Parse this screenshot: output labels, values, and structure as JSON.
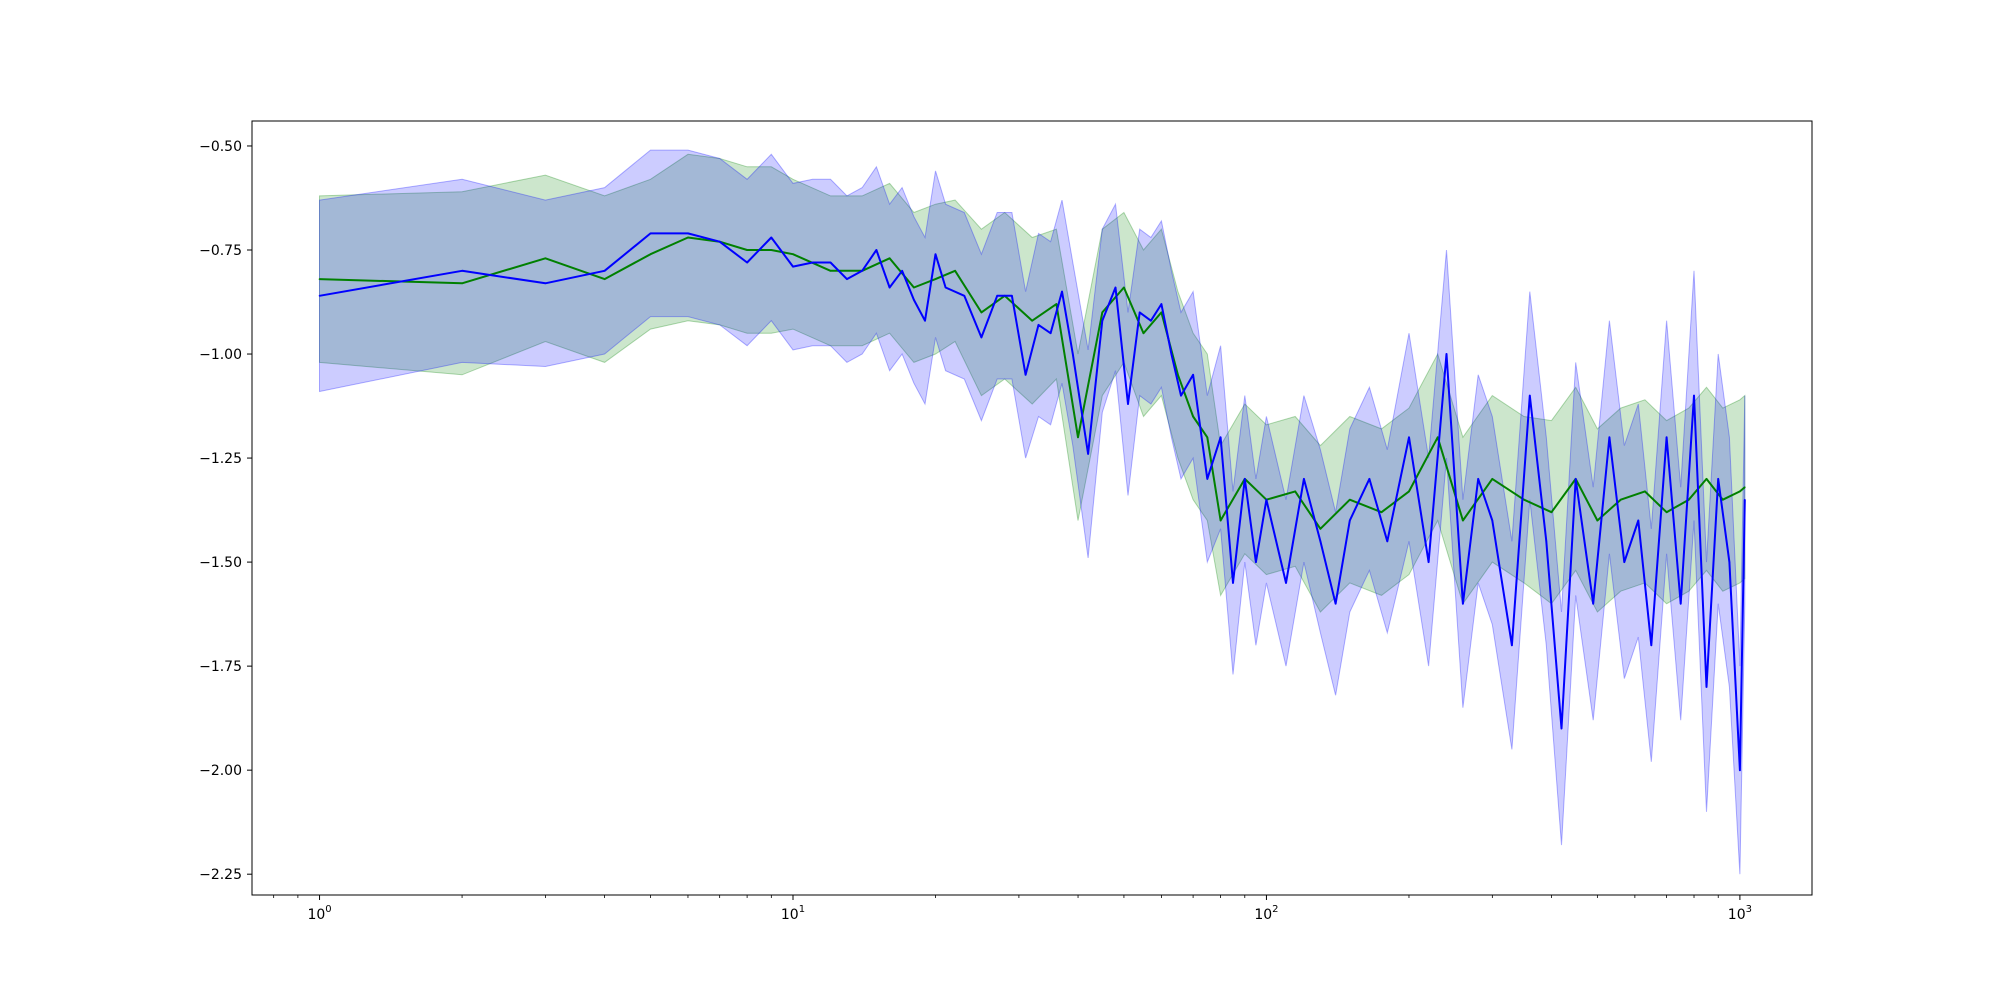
{
  "chart_data": {
    "type": "line",
    "title": "",
    "xlabel": "",
    "ylabel": "",
    "xscale": "log",
    "xlim": [
      0.72,
      1420
    ],
    "ylim": [
      -2.3,
      -0.44
    ],
    "grid": false,
    "legend": "none",
    "x_ticks": [
      1,
      10,
      100,
      1000
    ],
    "x_tick_labels": [
      {
        "base": "10",
        "exp": "0"
      },
      {
        "base": "10",
        "exp": "1"
      },
      {
        "base": "10",
        "exp": "2"
      },
      {
        "base": "10",
        "exp": "3"
      }
    ],
    "y_ticks": [
      -0.5,
      -0.75,
      -1.0,
      -1.25,
      -1.5,
      -1.75,
      -2.0,
      -2.25
    ],
    "y_tick_labels": [
      "−0.50",
      "−0.75",
      "−1.00",
      "−1.25",
      "−1.50",
      "−1.75",
      "−2.00",
      "−2.25"
    ],
    "series": [
      {
        "color": "#008000",
        "band_color": "#008000",
        "band_opacity": 0.2,
        "x": [
          1,
          2,
          3,
          4,
          5,
          6,
          7,
          8,
          9,
          10,
          12,
          14,
          16,
          18,
          20,
          22,
          25,
          28,
          32,
          36,
          40,
          45,
          50,
          55,
          60,
          65,
          70,
          75,
          80,
          90,
          100,
          115,
          130,
          150,
          175,
          200,
          230,
          260,
          300,
          350,
          400,
          450,
          500,
          560,
          630,
          700,
          780,
          850,
          920,
          1000,
          1024
        ],
        "y": [
          -0.82,
          -0.83,
          -0.77,
          -0.82,
          -0.76,
          -0.72,
          -0.73,
          -0.75,
          -0.75,
          -0.76,
          -0.8,
          -0.8,
          -0.77,
          -0.84,
          -0.82,
          -0.8,
          -0.9,
          -0.86,
          -0.92,
          -0.88,
          -1.2,
          -0.9,
          -0.84,
          -0.95,
          -0.9,
          -1.05,
          -1.15,
          -1.2,
          -1.4,
          -1.3,
          -1.35,
          -1.33,
          -1.42,
          -1.35,
          -1.38,
          -1.33,
          -1.2,
          -1.4,
          -1.3,
          -1.35,
          -1.38,
          -1.3,
          -1.4,
          -1.35,
          -1.33,
          -1.38,
          -1.35,
          -1.3,
          -1.35,
          -1.33,
          -1.32
        ],
        "spread": [
          0.2,
          0.22,
          0.2,
          0.2,
          0.18,
          0.2,
          0.2,
          0.2,
          0.2,
          0.18,
          0.18,
          0.18,
          0.18,
          0.18,
          0.18,
          0.17,
          0.2,
          0.2,
          0.2,
          0.18,
          0.2,
          0.2,
          0.18,
          0.2,
          0.2,
          0.2,
          0.2,
          0.2,
          0.18,
          0.18,
          0.18,
          0.18,
          0.2,
          0.2,
          0.2,
          0.2,
          0.2,
          0.2,
          0.2,
          0.2,
          0.22,
          0.22,
          0.22,
          0.22,
          0.22,
          0.22,
          0.22,
          0.22,
          0.22,
          0.22,
          0.22
        ]
      },
      {
        "color": "#0000ff",
        "band_color": "#0000ff",
        "band_opacity": 0.2,
        "x": [
          1,
          2,
          3,
          4,
          5,
          6,
          7,
          8,
          9,
          10,
          11,
          12,
          13,
          14,
          15,
          16,
          17,
          18,
          19,
          20,
          21,
          23,
          25,
          27,
          29,
          31,
          33,
          35,
          37,
          39,
          42,
          45,
          48,
          51,
          54,
          57,
          60,
          63,
          66,
          70,
          75,
          80,
          85,
          90,
          95,
          100,
          110,
          120,
          130,
          140,
          150,
          165,
          180,
          200,
          220,
          240,
          260,
          280,
          300,
          330,
          360,
          390,
          420,
          450,
          490,
          530,
          570,
          610,
          650,
          700,
          750,
          800,
          850,
          900,
          950,
          1000,
          1024
        ],
        "y": [
          -0.86,
          -0.8,
          -0.83,
          -0.8,
          -0.71,
          -0.71,
          -0.73,
          -0.78,
          -0.72,
          -0.79,
          -0.78,
          -0.78,
          -0.82,
          -0.8,
          -0.75,
          -0.84,
          -0.8,
          -0.87,
          -0.92,
          -0.76,
          -0.84,
          -0.86,
          -0.96,
          -0.86,
          -0.86,
          -1.05,
          -0.93,
          -0.95,
          -0.85,
          -1.0,
          -1.24,
          -0.92,
          -0.84,
          -1.12,
          -0.9,
          -0.92,
          -0.88,
          -1.0,
          -1.1,
          -1.05,
          -1.3,
          -1.2,
          -1.55,
          -1.3,
          -1.5,
          -1.35,
          -1.55,
          -1.3,
          -1.45,
          -1.6,
          -1.4,
          -1.3,
          -1.45,
          -1.2,
          -1.5,
          -1.0,
          -1.6,
          -1.3,
          -1.4,
          -1.7,
          -1.1,
          -1.45,
          -1.9,
          -1.3,
          -1.6,
          -1.2,
          -1.5,
          -1.4,
          -1.7,
          -1.2,
          -1.6,
          -1.1,
          -1.8,
          -1.3,
          -1.5,
          -2.0,
          -1.35
        ],
        "spread": [
          0.23,
          0.22,
          0.2,
          0.2,
          0.2,
          0.2,
          0.2,
          0.2,
          0.2,
          0.2,
          0.2,
          0.2,
          0.2,
          0.2,
          0.2,
          0.2,
          0.2,
          0.2,
          0.2,
          0.2,
          0.2,
          0.2,
          0.2,
          0.2,
          0.2,
          0.2,
          0.22,
          0.22,
          0.22,
          0.22,
          0.25,
          0.22,
          0.2,
          0.22,
          0.2,
          0.2,
          0.2,
          0.2,
          0.2,
          0.2,
          0.2,
          0.22,
          0.22,
          0.2,
          0.2,
          0.2,
          0.2,
          0.2,
          0.22,
          0.22,
          0.22,
          0.22,
          0.22,
          0.25,
          0.25,
          0.25,
          0.25,
          0.25,
          0.25,
          0.25,
          0.25,
          0.25,
          0.28,
          0.28,
          0.28,
          0.28,
          0.28,
          0.28,
          0.28,
          0.28,
          0.28,
          0.3,
          0.3,
          0.3,
          0.3,
          0.25,
          0.25
        ]
      }
    ]
  }
}
